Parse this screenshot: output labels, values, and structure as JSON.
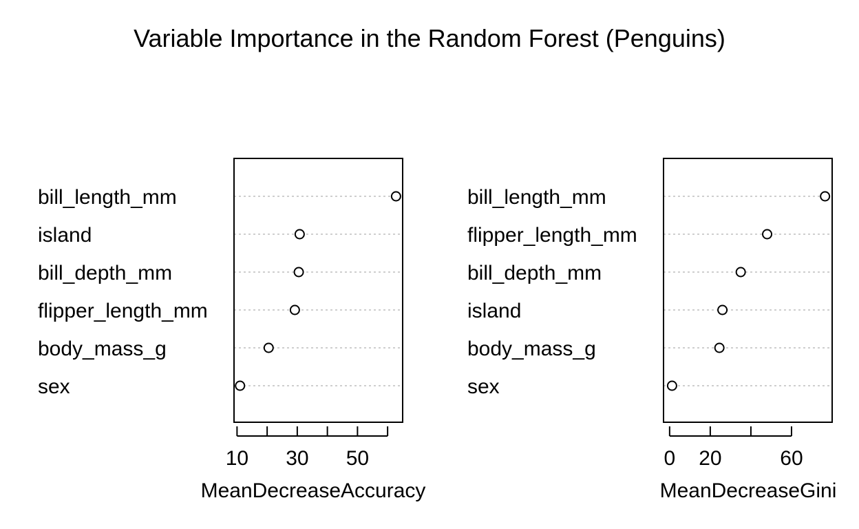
{
  "title": "Variable Importance in the Random Forest (Penguins)",
  "chart_data": [
    {
      "type": "scatter",
      "style": "dotchart",
      "xlabel": "MeanDecreaseAccuracy",
      "xlim": [
        9,
        65
      ],
      "ticks": [
        10,
        20,
        30,
        40,
        50,
        60
      ],
      "tick_labels": [
        "10",
        "",
        "30",
        "",
        "50",
        ""
      ],
      "grid": "dotted horizontal",
      "points": [
        {
          "label": "bill_length_mm",
          "value": 62.8
        },
        {
          "label": "island",
          "value": 30.8
        },
        {
          "label": "bill_depth_mm",
          "value": 30.5
        },
        {
          "label": "flipper_length_mm",
          "value": 29.2
        },
        {
          "label": "body_mass_g",
          "value": 20.5
        },
        {
          "label": "sex",
          "value": 11.0
        }
      ]
    },
    {
      "type": "scatter",
      "style": "dotchart",
      "xlabel": "MeanDecreaseGini",
      "xlim": [
        -3,
        80
      ],
      "ticks": [
        0,
        20,
        40,
        60
      ],
      "tick_labels": [
        "0",
        "20",
        "",
        "60"
      ],
      "grid": "dotted horizontal",
      "points": [
        {
          "label": "bill_length_mm",
          "value": 76.5
        },
        {
          "label": "flipper_length_mm",
          "value": 48.0
        },
        {
          "label": "bill_depth_mm",
          "value": 35.0
        },
        {
          "label": "island",
          "value": 26.0
        },
        {
          "label": "body_mass_g",
          "value": 24.5
        },
        {
          "label": "sex",
          "value": 1.2
        }
      ]
    }
  ]
}
